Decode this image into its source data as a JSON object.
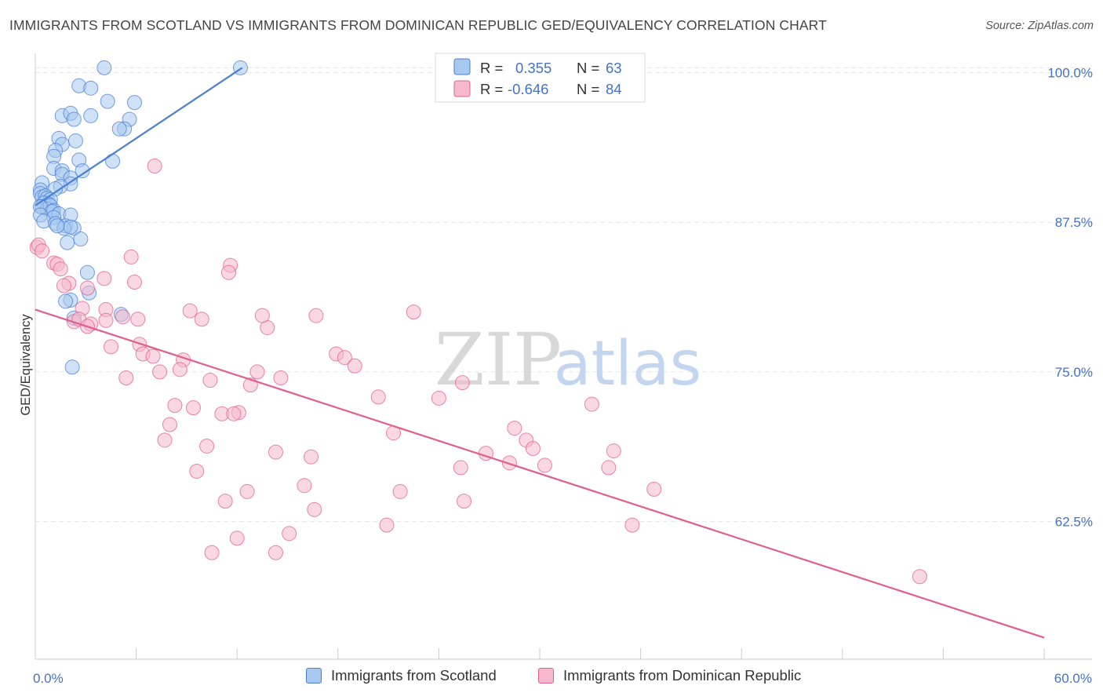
{
  "title": "IMMIGRANTS FROM SCOTLAND VS IMMIGRANTS FROM DOMINICAN REPUBLIC GED/EQUIVALENCY CORRELATION CHART",
  "source": "Source: ZipAtlas.com",
  "watermark": {
    "zip": "ZIP",
    "atlas": "atlas"
  },
  "colors": {
    "blue": "#4a7fd4",
    "blue_fill": "#a8c8f0",
    "pink": "#e0608c",
    "pink_fill": "#f5b8cc",
    "axis_label": "#4472c4",
    "grid": "#e6e6e6"
  },
  "legend_top": [
    {
      "r_label": "R =",
      "r_value": "0.355",
      "n_label": "N =",
      "n_value": "63"
    },
    {
      "r_label": "R =",
      "r_value": "-0.646",
      "n_label": "N =",
      "n_value": "84"
    }
  ],
  "chart_data": {
    "type": "scatter",
    "title": "IMMIGRANTS FROM SCOTLAND VS IMMIGRANTS FROM DOMINICAN REPUBLIC GED/EQUIVALENCY CORRELATION CHART",
    "xlabel": "",
    "ylabel": "GED/Equivalency",
    "xlim": [
      0,
      60
    ],
    "ylim": [
      51,
      102
    ],
    "x_tick_labels": [
      {
        "value": 0,
        "label": "0.0%"
      },
      {
        "value": 60,
        "label": "60.0%"
      }
    ],
    "y_tick_labels": [
      {
        "value": 100,
        "label": "100.0%"
      },
      {
        "value": 87.5,
        "label": "87.5%"
      },
      {
        "value": 75,
        "label": "75.0%"
      },
      {
        "value": 62.5,
        "label": "62.5%"
      }
    ],
    "grid": true,
    "legend_placement": "bottom",
    "series": [
      {
        "name": "Immigrants from Scotland",
        "color": "#4a7fd4",
        "trend": {
          "x0": 0.0,
          "y0": 88.9,
          "x1": 12.3,
          "y1": 100.4
        },
        "points": [
          [
            4.1,
            100.4
          ],
          [
            12.2,
            100.4
          ],
          [
            2.6,
            98.9
          ],
          [
            3.3,
            98.7
          ],
          [
            4.3,
            97.6
          ],
          [
            5.9,
            97.5
          ],
          [
            1.6,
            96.4
          ],
          [
            2.1,
            96.6
          ],
          [
            3.3,
            96.4
          ],
          [
            2.3,
            96.1
          ],
          [
            5.6,
            96.1
          ],
          [
            5.3,
            95.3
          ],
          [
            5.0,
            95.3
          ],
          [
            1.4,
            94.5
          ],
          [
            2.4,
            94.3
          ],
          [
            1.6,
            94.0
          ],
          [
            1.2,
            93.5
          ],
          [
            1.1,
            93.0
          ],
          [
            2.6,
            92.7
          ],
          [
            4.6,
            92.6
          ],
          [
            1.1,
            92.0
          ],
          [
            1.6,
            91.8
          ],
          [
            2.8,
            91.8
          ],
          [
            1.6,
            91.5
          ],
          [
            2.1,
            91.2
          ],
          [
            0.4,
            90.8
          ],
          [
            2.1,
            90.7
          ],
          [
            1.5,
            90.5
          ],
          [
            1.2,
            90.3
          ],
          [
            0.3,
            90.2
          ],
          [
            0.3,
            89.9
          ],
          [
            0.4,
            89.6
          ],
          [
            0.6,
            89.7
          ],
          [
            0.7,
            89.5
          ],
          [
            0.9,
            89.4
          ],
          [
            0.5,
            89.1
          ],
          [
            0.8,
            89.0
          ],
          [
            0.4,
            88.8
          ],
          [
            0.7,
            88.6
          ],
          [
            0.9,
            88.9
          ],
          [
            0.3,
            88.8
          ],
          [
            1.1,
            88.5
          ],
          [
            1.0,
            88.4
          ],
          [
            1.4,
            88.2
          ],
          [
            0.3,
            88.1
          ],
          [
            1.1,
            87.9
          ],
          [
            2.1,
            88.1
          ],
          [
            0.5,
            87.6
          ],
          [
            1.2,
            87.4
          ],
          [
            1.8,
            87.2
          ],
          [
            2.3,
            87.0
          ],
          [
            1.7,
            87.0
          ],
          [
            2.1,
            87.1
          ],
          [
            1.3,
            87.2
          ],
          [
            2.7,
            86.1
          ],
          [
            1.9,
            85.8
          ],
          [
            3.1,
            83.3
          ],
          [
            3.2,
            81.6
          ],
          [
            2.1,
            81.0
          ],
          [
            5.1,
            79.8
          ],
          [
            2.3,
            79.5
          ],
          [
            2.2,
            75.4
          ],
          [
            1.8,
            80.9
          ]
        ]
      },
      {
        "name": "Immigrants from Dominican Republic",
        "color": "#e0608c",
        "trend": {
          "x0": 0.0,
          "y0": 80.2,
          "x1": 60.0,
          "y1": 52.8
        },
        "points": [
          [
            0.1,
            85.4
          ],
          [
            0.2,
            85.6
          ],
          [
            0.4,
            85.1
          ],
          [
            1.1,
            84.1
          ],
          [
            1.3,
            84.0
          ],
          [
            1.5,
            83.6
          ],
          [
            7.1,
            92.2
          ],
          [
            5.7,
            84.6
          ],
          [
            11.6,
            83.9
          ],
          [
            11.5,
            83.3
          ],
          [
            4.1,
            82.8
          ],
          [
            5.9,
            82.5
          ],
          [
            2.0,
            82.4
          ],
          [
            1.7,
            82.2
          ],
          [
            3.1,
            82.0
          ],
          [
            2.8,
            80.3
          ],
          [
            9.2,
            80.1
          ],
          [
            4.2,
            80.2
          ],
          [
            16.7,
            79.7
          ],
          [
            22.5,
            80.0
          ],
          [
            9.9,
            79.4
          ],
          [
            5.2,
            79.6
          ],
          [
            2.3,
            79.2
          ],
          [
            2.6,
            79.4
          ],
          [
            3.3,
            79.0
          ],
          [
            3.1,
            78.8
          ],
          [
            13.8,
            78.7
          ],
          [
            4.2,
            79.3
          ],
          [
            6.1,
            79.4
          ],
          [
            6.2,
            77.3
          ],
          [
            4.5,
            77.1
          ],
          [
            6.4,
            76.5
          ],
          [
            7.0,
            76.3
          ],
          [
            17.9,
            76.5
          ],
          [
            18.4,
            76.2
          ],
          [
            8.8,
            76.0
          ],
          [
            19.0,
            75.5
          ],
          [
            8.6,
            75.2
          ],
          [
            7.4,
            75.0
          ],
          [
            13.2,
            75.0
          ],
          [
            5.4,
            74.5
          ],
          [
            10.4,
            74.3
          ],
          [
            14.6,
            74.5
          ],
          [
            25.4,
            74.1
          ],
          [
            12.8,
            73.9
          ],
          [
            20.4,
            72.9
          ],
          [
            24.0,
            72.8
          ],
          [
            8.3,
            72.2
          ],
          [
            9.4,
            72.0
          ],
          [
            33.1,
            72.3
          ],
          [
            11.1,
            71.5
          ],
          [
            12.1,
            71.6
          ],
          [
            11.8,
            71.5
          ],
          [
            8.0,
            70.6
          ],
          [
            28.5,
            70.3
          ],
          [
            21.3,
            69.9
          ],
          [
            7.7,
            69.3
          ],
          [
            29.2,
            69.3
          ],
          [
            10.2,
            68.8
          ],
          [
            29.6,
            68.6
          ],
          [
            14.3,
            68.3
          ],
          [
            26.8,
            68.2
          ],
          [
            34.4,
            68.4
          ],
          [
            16.4,
            67.9
          ],
          [
            28.2,
            67.4
          ],
          [
            30.3,
            67.2
          ],
          [
            25.3,
            67.0
          ],
          [
            34.1,
            67.0
          ],
          [
            9.6,
            66.7
          ],
          [
            16.0,
            65.5
          ],
          [
            12.6,
            65.0
          ],
          [
            21.7,
            65.0
          ],
          [
            36.8,
            65.2
          ],
          [
            11.3,
            64.2
          ],
          [
            25.5,
            64.2
          ],
          [
            16.6,
            63.5
          ],
          [
            20.9,
            62.2
          ],
          [
            35.5,
            62.2
          ],
          [
            15.1,
            61.5
          ],
          [
            12.0,
            61.1
          ],
          [
            10.5,
            59.9
          ],
          [
            14.3,
            59.9
          ],
          [
            52.6,
            57.9
          ],
          [
            13.5,
            79.7
          ]
        ]
      }
    ]
  }
}
